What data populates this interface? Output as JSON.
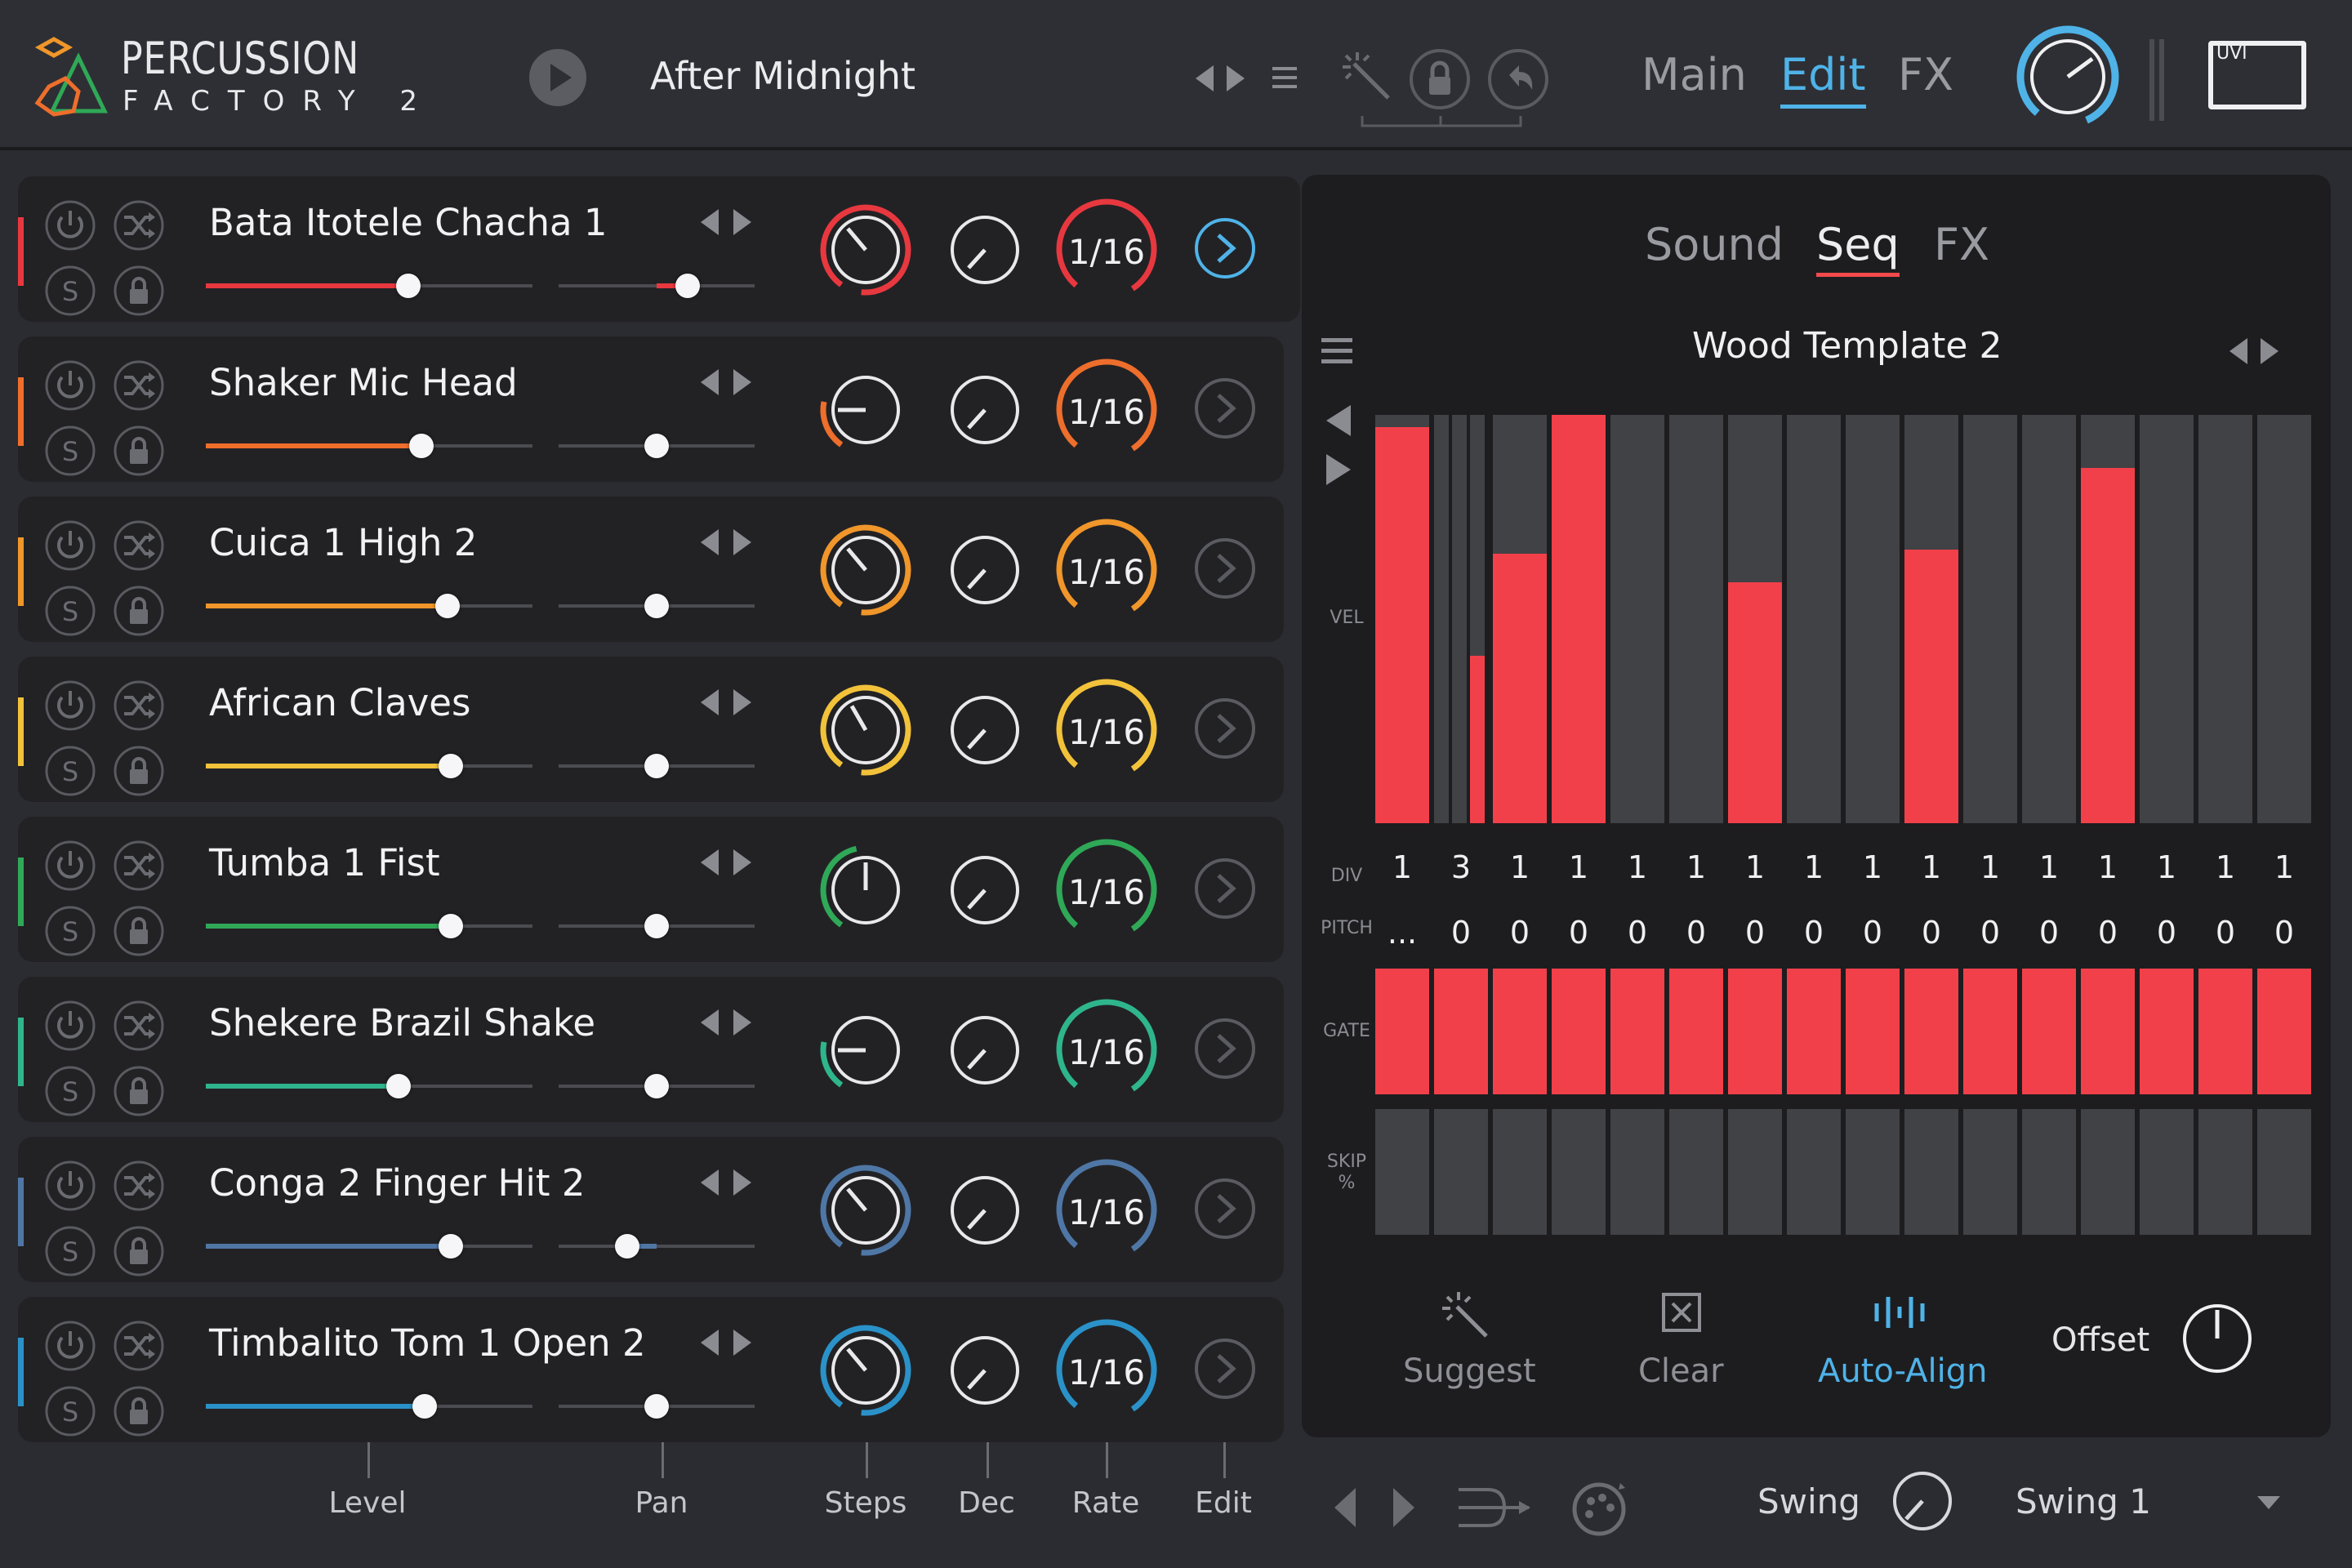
{
  "app": {
    "title_line1": "PERCUSSION",
    "title_line2": "FACTORY 2",
    "preset": "After Midnight",
    "brand": "UVI"
  },
  "nav": {
    "tabs": [
      "Main",
      "Edit",
      "FX"
    ],
    "active": "Edit"
  },
  "colors": {
    "accent_blue": "#4fb3e8",
    "seq_red": "#f2404a",
    "panel": "#222225"
  },
  "tracks": [
    {
      "name": "Bata Itotele Chacha 1",
      "color": "#e8383f",
      "level": 0.62,
      "pan": 0.66,
      "rate": "1/16",
      "steps_knob": "red"
    },
    {
      "name": "Shaker Mic Head",
      "color": "#ee6e2c",
      "level": 0.66,
      "pan": 0.5,
      "rate": "1/16"
    },
    {
      "name": "Cuica 1 High 2",
      "color": "#f0962a",
      "level": 0.74,
      "pan": 0.5,
      "rate": "1/16"
    },
    {
      "name": "African Claves",
      "color": "#f2c23a",
      "level": 0.75,
      "pan": 0.5,
      "rate": "1/16"
    },
    {
      "name": "Tumba 1 Fist",
      "color": "#2fa957",
      "level": 0.75,
      "pan": 0.5,
      "rate": "1/16"
    },
    {
      "name": "Shekere Brazil Shake",
      "color": "#2fb58c",
      "level": 0.59,
      "pan": 0.5,
      "rate": "1/16"
    },
    {
      "name": "Conga 2 Finger Hit 2",
      "color": "#4f77a6",
      "level": 0.75,
      "pan": 0.35,
      "rate": "1/16"
    },
    {
      "name": "Timbalito Tom 1 Open 2",
      "color": "#2a92c8",
      "level": 0.67,
      "pan": 0.5,
      "rate": "1/16"
    }
  ],
  "seq": {
    "subtabs": [
      "Sound",
      "Seq",
      "FX"
    ],
    "active_subtab": "Seq",
    "template": "Wood Template 2",
    "row_labels": {
      "vel": "VEL",
      "div": "DIV",
      "pitch": "PITCH",
      "gate": "GATE",
      "skip": "SKIP %"
    },
    "velocities": [
      0.97,
      0,
      0.66,
      1.0,
      0,
      0,
      0.59,
      0,
      0,
      0.67,
      0,
      0,
      0.87,
      0,
      0,
      0
    ],
    "div": [
      "1",
      "3",
      "1",
      "1",
      "1",
      "1",
      "1",
      "1",
      "1",
      "1",
      "1",
      "1",
      "1",
      "1",
      "1",
      "1"
    ],
    "pitch": [
      "...",
      "0",
      "0",
      "0",
      "0",
      "0",
      "0",
      "0",
      "0",
      "0",
      "0",
      "0",
      "0",
      "0",
      "0",
      "0"
    ],
    "gate": [
      1,
      1,
      1,
      1,
      1,
      1,
      1,
      1,
      1,
      1,
      1,
      1,
      1,
      1,
      1,
      1
    ],
    "skip": [
      0,
      0,
      0,
      0,
      0,
      0,
      0,
      0,
      0,
      0,
      0,
      0,
      0,
      0,
      0,
      0
    ],
    "actions": {
      "suggest": "Suggest",
      "clear": "Clear",
      "auto_align": "Auto-Align",
      "offset": "Offset"
    }
  },
  "footer": {
    "labels": [
      "Level",
      "Pan",
      "Steps",
      "Dec",
      "Rate",
      "Edit"
    ],
    "swing_label": "Swing",
    "swing_preset": "Swing 1"
  }
}
